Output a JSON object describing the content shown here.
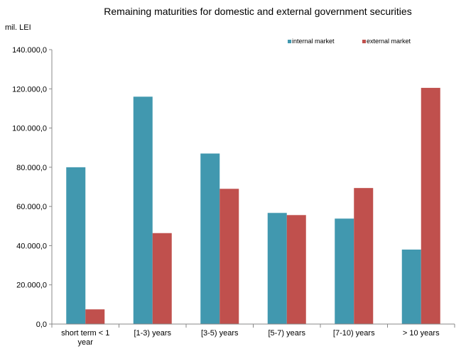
{
  "chart_data": {
    "type": "bar",
    "title": "Remaining maturities for domestic and external government securities",
    "ylabel": "mil. LEI",
    "xlabel": "",
    "categories": [
      [
        "short term < 1",
        "year"
      ],
      [
        "[1-3) years"
      ],
      [
        "[3-5) years"
      ],
      [
        "[5-7) years"
      ],
      [
        "[7-10) years"
      ],
      [
        "> 10 years"
      ]
    ],
    "series": [
      {
        "name": "internal market",
        "color": "#4198AF",
        "values": [
          80000,
          116000,
          87000,
          56700,
          53800,
          38000
        ]
      },
      {
        "name": "external market",
        "color": "#C0504D",
        "values": [
          7500,
          46400,
          69000,
          55600,
          69400,
          120500
        ]
      }
    ],
    "ylim": [
      0,
      140000
    ],
    "yticks": [
      "0,0",
      "20.000,0",
      "40.000,0",
      "60.000,0",
      "80.000,0",
      "100.000,0",
      "120.000,0",
      "140.000,0"
    ],
    "grid": false,
    "legend_position": "top-right"
  }
}
